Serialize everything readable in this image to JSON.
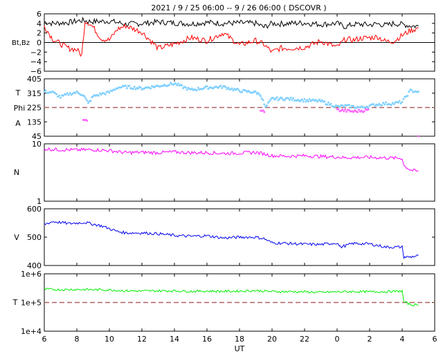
{
  "title": "2021 /  9 / 25   06:00 --  9 / 26   06:00 ( DSCOVR )",
  "xlabel": "UT",
  "x_ticks": [
    "6",
    "8",
    "10",
    "12",
    "14",
    "16",
    "18",
    "20",
    "22",
    "0",
    "2",
    "4",
    "6"
  ],
  "colors": {
    "bt": "#000000",
    "bz": "#ff0000",
    "theta": "#80d0ff",
    "phi": "#ff66ff",
    "density": "#ff00ff",
    "speed": "#0000ee",
    "temperature": "#00ee00",
    "reference_line": "#b06060"
  },
  "chart_data": [
    {
      "type": "line",
      "panel": "magnetic-field",
      "ylabel": "Bt,Bz",
      "ylim": [
        -6,
        6
      ],
      "y_ticks": [
        "6",
        "4",
        "2",
        "0",
        "−2",
        "−4",
        "−6"
      ],
      "x_hours": [
        6,
        6.5,
        7,
        7.5,
        8,
        8.3,
        8.5,
        8.7,
        9,
        9.5,
        10,
        10.5,
        11,
        12,
        13,
        14,
        15,
        16,
        17,
        18,
        19,
        19.5,
        20,
        20.5,
        21,
        22,
        23,
        24,
        24.5,
        25,
        25.5,
        26,
        26.5,
        27,
        27.5,
        28,
        28.5,
        29
      ],
      "series": [
        {
          "name": "Bt",
          "color": "#000000",
          "values": [
            4.3,
            4.0,
            4.1,
            4.2,
            4.5,
            4.6,
            4.6,
            4.4,
            4.4,
            4.4,
            4.5,
            4.2,
            3.8,
            4.0,
            4.3,
            4.1,
            3.9,
            4.2,
            4.0,
            4.1,
            4.0,
            3.2,
            4.0,
            3.9,
            4.0,
            4.1,
            3.8,
            4.0,
            3.3,
            3.8,
            3.8,
            3.7,
            3.9,
            3.6,
            4.0,
            3.8,
            3.5,
            3.4
          ]
        },
        {
          "name": "Bz",
          "color": "#ff0000",
          "values": [
            3.5,
            0.8,
            -0.3,
            -1.2,
            -1.5,
            -2.7,
            4.5,
            4.2,
            3.2,
            0.8,
            0.5,
            2.8,
            3.5,
            2.2,
            -1.2,
            -0.3,
            1.0,
            0.4,
            2.0,
            -0.5,
            0.4,
            -0.4,
            -2.0,
            -1.2,
            -1.2,
            -1.0,
            0.3,
            -1.0,
            0.7,
            0.5,
            0.9,
            1.0,
            1.2,
            0.2,
            0.3,
            1.5,
            2.5,
            3.0
          ]
        }
      ],
      "reference_line": 0
    },
    {
      "type": "scatter",
      "panel": "angles",
      "ylabel_top": "T",
      "ylabel_mid": "Phi",
      "ylabel_bottom": "A",
      "ylim": [
        45,
        405
      ],
      "y_ticks": [
        "405",
        "315",
        "225",
        "135",
        "45"
      ],
      "x_hours": [
        6,
        6.5,
        7,
        7.5,
        8,
        8.4,
        8.7,
        9,
        9.5,
        10,
        10.5,
        11,
        12,
        13,
        14,
        15,
        16,
        17,
        18,
        19,
        19.3,
        19.6,
        20,
        21,
        22,
        23,
        24,
        24.5,
        25,
        25.5,
        26,
        26.5,
        27,
        27.5,
        28,
        28.5,
        29
      ],
      "series": [
        {
          "name": "T",
          "color": "#80d0ff",
          "values": [
            325,
            320,
            290,
            310,
            320,
            305,
            250,
            295,
            310,
            320,
            350,
            355,
            345,
            360,
            375,
            335,
            350,
            355,
            330,
            320,
            305,
            225,
            280,
            280,
            270,
            265,
            230,
            235,
            230,
            225,
            235,
            245,
            250,
            250,
            260,
            330,
            325
          ]
        },
        {
          "name": "A",
          "color": "#ff66ff",
          "values": [
            null,
            null,
            null,
            null,
            null,
            140,
            150,
            null,
            null,
            null,
            null,
            null,
            null,
            null,
            null,
            null,
            null,
            null,
            null,
            null,
            200,
            205,
            null,
            null,
            null,
            null,
            210,
            205,
            200,
            205,
            210,
            null,
            null,
            null,
            null,
            null,
            null
          ]
        }
      ],
      "reference_line": 225
    },
    {
      "type": "line",
      "panel": "density",
      "ylabel": "N",
      "yscale": "log",
      "ylim": [
        1,
        10
      ],
      "y_ticks": [
        "10",
        "1"
      ],
      "x_hours": [
        6,
        6.5,
        7,
        8,
        9,
        10,
        10.5,
        11,
        12,
        13,
        14,
        15,
        16,
        17,
        18,
        19,
        19.5,
        20,
        21,
        22,
        23,
        24,
        24.5,
        25,
        26,
        27,
        28,
        28.1,
        28.5,
        29
      ],
      "series": [
        {
          "name": "N",
          "color": "#ff00ff",
          "values": [
            8.2,
            8.0,
            7.9,
            7.8,
            7.9,
            7.6,
            7.3,
            7.0,
            7.1,
            7.0,
            7.2,
            7.0,
            7.0,
            6.8,
            6.9,
            7.1,
            6.7,
            6.2,
            6.1,
            6.2,
            6.0,
            5.9,
            5.7,
            5.8,
            5.8,
            5.7,
            5.6,
            4.2,
            3.5,
            3.3
          ]
        }
      ]
    },
    {
      "type": "line",
      "panel": "speed",
      "ylabel": "V",
      "ylim": [
        400,
        600
      ],
      "y_ticks": [
        "600",
        "500",
        "400"
      ],
      "x_hours": [
        6,
        6.5,
        7,
        7.5,
        8,
        8.5,
        9,
        9.5,
        10,
        10.5,
        11,
        12,
        13,
        14,
        15,
        16,
        17,
        18,
        19,
        19.5,
        20,
        21,
        22,
        23,
        24,
        24.2,
        25,
        26,
        27,
        28,
        28.1,
        28.5,
        29
      ],
      "series": [
        {
          "name": "V",
          "color": "#0000ee",
          "values": [
            545,
            555,
            552,
            548,
            550,
            552,
            546,
            540,
            530,
            520,
            515,
            515,
            512,
            506,
            503,
            505,
            497,
            500,
            500,
            495,
            480,
            478,
            475,
            474,
            480,
            465,
            478,
            476,
            465,
            465,
            430,
            430,
            435
          ]
        }
      ]
    },
    {
      "type": "line",
      "panel": "temperature",
      "ylabel": "T",
      "yscale": "log",
      "ylim": [
        10000,
        1000000
      ],
      "y_ticks": [
        "1e+6",
        "1e+5",
        "1e+4"
      ],
      "x_hours": [
        6,
        7,
        8,
        9,
        10,
        11,
        12,
        13,
        14,
        15,
        16,
        17,
        18,
        19,
        20,
        21,
        22,
        23,
        24,
        25,
        26,
        27,
        28,
        28.1,
        28.5,
        29
      ],
      "series": [
        {
          "name": "T",
          "color": "#00ee00",
          "values": [
            290000,
            280000,
            285000,
            280000,
            275000,
            255000,
            250000,
            255000,
            255000,
            245000,
            250000,
            245000,
            250000,
            260000,
            240000,
            240000,
            235000,
            225000,
            235000,
            240000,
            235000,
            240000,
            250000,
            105000,
            85000,
            80000
          ]
        }
      ],
      "reference_line": 100000
    }
  ]
}
